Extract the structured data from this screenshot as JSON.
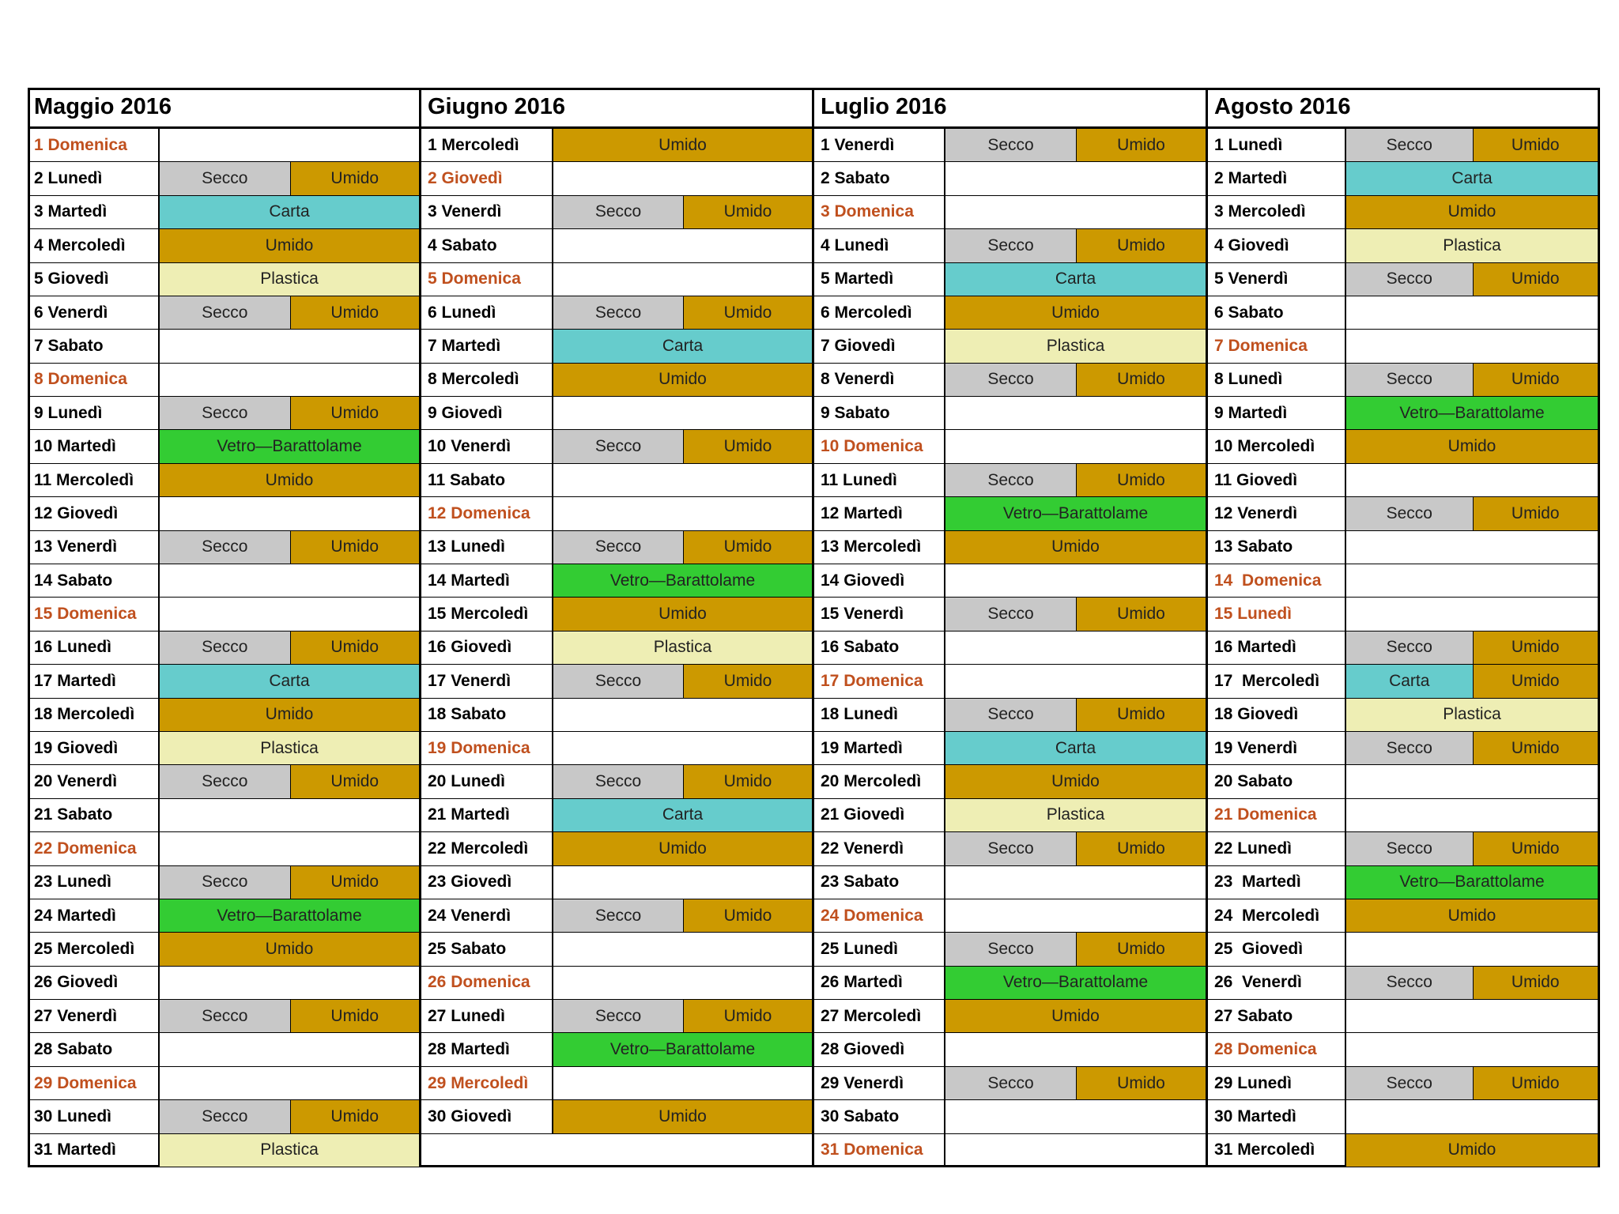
{
  "palette": {
    "Secco": "#c8c8c8",
    "Umido": "#cc9900",
    "Carta": "#66cccc",
    "Plastica": "#eeeeb4",
    "Vetro—Barattolame": "#33cc33"
  },
  "holiday_color": "#c0501e",
  "months": [
    {
      "title": "Maggio 2016",
      "days": [
        {
          "d": "1 Domenica",
          "h": true,
          "s": []
        },
        {
          "d": "2 Lunedì",
          "s": [
            "Secco",
            "Umido"
          ]
        },
        {
          "d": "3 Martedì",
          "s": [
            "Carta"
          ]
        },
        {
          "d": "4 Mercoledì",
          "s": [
            "Umido"
          ]
        },
        {
          "d": "5 Giovedì",
          "s": [
            "Plastica"
          ]
        },
        {
          "d": "6 Venerdì",
          "s": [
            "Secco",
            "Umido"
          ]
        },
        {
          "d": "7 Sabato",
          "s": []
        },
        {
          "d": "8 Domenica",
          "h": true,
          "s": []
        },
        {
          "d": "9 Lunedì",
          "s": [
            "Secco",
            "Umido"
          ]
        },
        {
          "d": "10 Martedì",
          "s": [
            "Vetro—Barattolame"
          ]
        },
        {
          "d": "11 Mercoledì",
          "s": [
            "Umido"
          ]
        },
        {
          "d": "12 Giovedì",
          "s": []
        },
        {
          "d": "13 Venerdì",
          "s": [
            "Secco",
            "Umido"
          ]
        },
        {
          "d": "14 Sabato",
          "s": []
        },
        {
          "d": "15 Domenica",
          "h": true,
          "s": []
        },
        {
          "d": "16 Lunedì",
          "s": [
            "Secco",
            "Umido"
          ]
        },
        {
          "d": "17 Martedì",
          "s": [
            "Carta"
          ]
        },
        {
          "d": "18 Mercoledì",
          "s": [
            "Umido"
          ]
        },
        {
          "d": "19 Giovedì",
          "s": [
            "Plastica"
          ]
        },
        {
          "d": "20 Venerdì",
          "s": [
            "Secco",
            "Umido"
          ]
        },
        {
          "d": "21 Sabato",
          "s": []
        },
        {
          "d": "22 Domenica",
          "h": true,
          "s": []
        },
        {
          "d": "23 Lunedì",
          "s": [
            "Secco",
            "Umido"
          ]
        },
        {
          "d": "24 Martedì",
          "s": [
            "Vetro—Barattolame"
          ]
        },
        {
          "d": "25 Mercoledì",
          "s": [
            "Umido"
          ]
        },
        {
          "d": "26 Giovedì",
          "s": []
        },
        {
          "d": "27 Venerdì",
          "s": [
            "Secco",
            "Umido"
          ]
        },
        {
          "d": "28 Sabato",
          "s": []
        },
        {
          "d": "29 Domenica",
          "h": true,
          "s": []
        },
        {
          "d": "30 Lunedì",
          "s": [
            "Secco",
            "Umido"
          ]
        },
        {
          "d": "31 Martedì",
          "s": [
            "Plastica"
          ]
        }
      ]
    },
    {
      "title": "Giugno 2016",
      "days": [
        {
          "d": "1 Mercoledì",
          "s": [
            "Umido"
          ]
        },
        {
          "d": "2 Giovedì",
          "h": true,
          "s": []
        },
        {
          "d": "3 Venerdì",
          "s": [
            "Secco",
            "Umido"
          ]
        },
        {
          "d": "4 Sabato",
          "s": []
        },
        {
          "d": "5 Domenica",
          "h": true,
          "s": []
        },
        {
          "d": "6 Lunedì",
          "s": [
            "Secco",
            "Umido"
          ]
        },
        {
          "d": "7 Martedì",
          "s": [
            "Carta"
          ]
        },
        {
          "d": "8 Mercoledì",
          "s": [
            "Umido"
          ]
        },
        {
          "d": "9 Giovedì",
          "s": []
        },
        {
          "d": "10 Venerdì",
          "s": [
            "Secco",
            "Umido"
          ]
        },
        {
          "d": "11 Sabato",
          "s": []
        },
        {
          "d": "12 Domenica",
          "h": true,
          "s": []
        },
        {
          "d": "13 Lunedì",
          "s": [
            "Secco",
            "Umido"
          ]
        },
        {
          "d": "14 Martedì",
          "s": [
            "Vetro—Barattolame"
          ]
        },
        {
          "d": "15 Mercoledì",
          "s": [
            "Umido"
          ]
        },
        {
          "d": "16 Giovedì",
          "s": [
            "Plastica"
          ]
        },
        {
          "d": "17 Venerdì",
          "s": [
            "Secco",
            "Umido"
          ]
        },
        {
          "d": "18 Sabato",
          "s": []
        },
        {
          "d": "19 Domenica",
          "h": true,
          "s": []
        },
        {
          "d": "20 Lunedì",
          "s": [
            "Secco",
            "Umido"
          ]
        },
        {
          "d": "21 Martedì",
          "s": [
            "Carta"
          ]
        },
        {
          "d": "22 Mercoledì",
          "s": [
            "Umido"
          ]
        },
        {
          "d": "23 Giovedì",
          "s": []
        },
        {
          "d": "24 Venerdì",
          "s": [
            "Secco",
            "Umido"
          ]
        },
        {
          "d": "25 Sabato",
          "s": []
        },
        {
          "d": "26 Domenica",
          "h": true,
          "s": []
        },
        {
          "d": "27 Lunedì",
          "s": [
            "Secco",
            "Umido"
          ]
        },
        {
          "d": "28 Martedì",
          "s": [
            "Vetro—Barattolame"
          ]
        },
        {
          "d": "29 Mercoledì",
          "h": true,
          "s": []
        },
        {
          "d": "30 Giovedì",
          "s": [
            "Umido"
          ]
        }
      ]
    },
    {
      "title": "Luglio 2016",
      "days": [
        {
          "d": "1 Venerdì",
          "s": [
            "Secco",
            "Umido"
          ]
        },
        {
          "d": "2 Sabato",
          "s": []
        },
        {
          "d": "3 Domenica",
          "h": true,
          "s": []
        },
        {
          "d": "4 Lunedì",
          "s": [
            "Secco",
            "Umido"
          ]
        },
        {
          "d": "5 Martedì",
          "s": [
            "Carta"
          ]
        },
        {
          "d": "6 Mercoledì",
          "s": [
            "Umido"
          ]
        },
        {
          "d": "7 Giovedì",
          "s": [
            "Plastica"
          ]
        },
        {
          "d": "8 Venerdì",
          "s": [
            "Secco",
            "Umido"
          ]
        },
        {
          "d": "9 Sabato",
          "s": []
        },
        {
          "d": "10 Domenica",
          "h": true,
          "s": []
        },
        {
          "d": "11 Lunedì",
          "s": [
            "Secco",
            "Umido"
          ]
        },
        {
          "d": "12 Martedì",
          "s": [
            "Vetro—Barattolame"
          ]
        },
        {
          "d": "13 Mercoledì",
          "s": [
            "Umido"
          ]
        },
        {
          "d": "14 Giovedì",
          "s": []
        },
        {
          "d": "15 Venerdì",
          "s": [
            "Secco",
            "Umido"
          ]
        },
        {
          "d": "16 Sabato",
          "s": []
        },
        {
          "d": "17 Domenica",
          "h": true,
          "s": []
        },
        {
          "d": "18 Lunedì",
          "s": [
            "Secco",
            "Umido"
          ]
        },
        {
          "d": "19 Martedì",
          "s": [
            "Carta"
          ]
        },
        {
          "d": "20 Mercoledì",
          "s": [
            "Umido"
          ]
        },
        {
          "d": "21 Giovedì",
          "s": [
            "Plastica"
          ]
        },
        {
          "d": "22 Venerdì",
          "s": [
            "Secco",
            "Umido"
          ]
        },
        {
          "d": "23 Sabato",
          "s": []
        },
        {
          "d": "24 Domenica",
          "h": true,
          "s": []
        },
        {
          "d": "25 Lunedì",
          "s": [
            "Secco",
            "Umido"
          ]
        },
        {
          "d": "26 Martedì",
          "s": [
            "Vetro—Barattolame"
          ]
        },
        {
          "d": "27 Mercoledì",
          "s": [
            "Umido"
          ]
        },
        {
          "d": "28 Giovedì",
          "s": []
        },
        {
          "d": "29 Venerdì",
          "s": [
            "Secco",
            "Umido"
          ]
        },
        {
          "d": "30 Sabato",
          "s": []
        },
        {
          "d": "31 Domenica",
          "h": true,
          "s": []
        }
      ]
    },
    {
      "title": "Agosto 2016",
      "days": [
        {
          "d": "1 Lunedì",
          "s": [
            "Secco",
            "Umido"
          ]
        },
        {
          "d": "2 Martedì",
          "s": [
            "Carta"
          ]
        },
        {
          "d": "3 Mercoledì",
          "s": [
            "Umido"
          ]
        },
        {
          "d": "4 Giovedì",
          "s": [
            "Plastica"
          ]
        },
        {
          "d": "5 Venerdì",
          "s": [
            "Secco",
            "Umido"
          ]
        },
        {
          "d": "6 Sabato",
          "s": []
        },
        {
          "d": "7 Domenica",
          "h": true,
          "s": []
        },
        {
          "d": "8 Lunedì",
          "s": [
            "Secco",
            "Umido"
          ]
        },
        {
          "d": "9 Martedì",
          "s": [
            "Vetro—Barattolame"
          ]
        },
        {
          "d": "10 Mercoledì",
          "s": [
            "Umido"
          ]
        },
        {
          "d": "11 Giovedì",
          "s": []
        },
        {
          "d": "12 Venerdì",
          "s": [
            "Secco",
            "Umido"
          ]
        },
        {
          "d": "13 Sabato",
          "s": []
        },
        {
          "d": "14  Domenica",
          "h": true,
          "s": []
        },
        {
          "d": "15 Lunedì",
          "h": true,
          "s": []
        },
        {
          "d": "16 Martedì",
          "s": [
            "Secco",
            "Umido"
          ]
        },
        {
          "d": "17  Mercoledì",
          "s": [
            "Carta",
            "Umido"
          ]
        },
        {
          "d": "18 Giovedì",
          "s": [
            "Plastica"
          ]
        },
        {
          "d": "19 Venerdì",
          "s": [
            "Secco",
            "Umido"
          ]
        },
        {
          "d": "20 Sabato",
          "s": []
        },
        {
          "d": "21 Domenica",
          "h": true,
          "s": []
        },
        {
          "d": "22 Lunedì",
          "s": [
            "Secco",
            "Umido"
          ]
        },
        {
          "d": "23  Martedì",
          "s": [
            "Vetro—Barattolame"
          ]
        },
        {
          "d": "24  Mercoledì",
          "s": [
            "Umido"
          ]
        },
        {
          "d": "25  Giovedì",
          "s": []
        },
        {
          "d": "26  Venerdì",
          "s": [
            "Secco",
            "Umido"
          ]
        },
        {
          "d": "27 Sabato",
          "s": []
        },
        {
          "d": "28 Domenica",
          "h": true,
          "s": []
        },
        {
          "d": "29 Lunedì",
          "s": [
            "Secco",
            "Umido"
          ]
        },
        {
          "d": "30 Martedì",
          "s": []
        },
        {
          "d": "31 Mercoledì",
          "s": [
            "Umido"
          ]
        }
      ]
    }
  ]
}
